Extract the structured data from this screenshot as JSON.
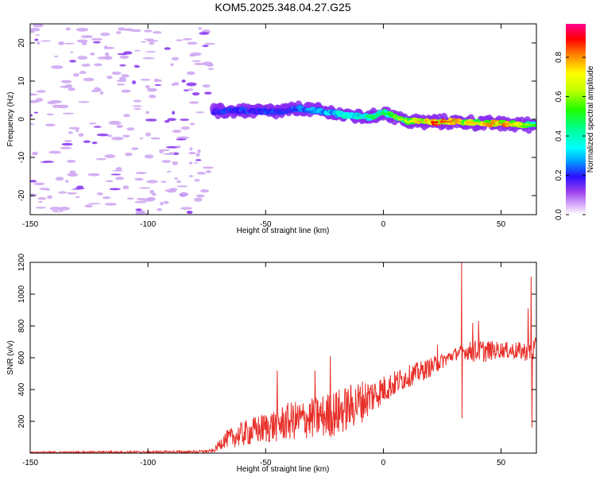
{
  "title": "KOM5.2025.348.04.27.G25",
  "colors": {
    "snr_line": "#e8302a",
    "blob_light": "#cfa8f2",
    "blob_mid": "#8d3cf0",
    "axis": "#000000"
  },
  "chart_data": [
    {
      "type": "heatmap",
      "name": "spectrogram",
      "xlabel": "Height of straight line (km)",
      "ylabel": "Frequency (Hz)",
      "xlim": [
        -150,
        65
      ],
      "ylim": [
        -25,
        25
      ],
      "xticks": [
        -150,
        -100,
        -50,
        0,
        50
      ],
      "yticks": [
        -20,
        -10,
        0,
        10,
        20
      ],
      "noise_region_x": [
        -150,
        -73
      ],
      "signal_path": [
        {
          "x": -72,
          "f": 2.0,
          "amp": 0.2
        },
        {
          "x": -60,
          "f": 2.3,
          "amp": 0.22
        },
        {
          "x": -45,
          "f": 2.0,
          "amp": 0.22
        },
        {
          "x": -35,
          "f": 2.8,
          "amp": 0.25
        },
        {
          "x": -25,
          "f": 2.0,
          "amp": 0.3
        },
        {
          "x": -15,
          "f": 1.0,
          "amp": 0.4
        },
        {
          "x": -5,
          "f": 0.5,
          "amp": 0.45
        },
        {
          "x": 0,
          "f": 1.8,
          "amp": 0.45
        },
        {
          "x": 10,
          "f": -0.5,
          "amp": 0.6
        },
        {
          "x": 20,
          "f": -0.8,
          "amp": 0.85
        },
        {
          "x": 30,
          "f": -0.6,
          "amp": 0.75
        },
        {
          "x": 40,
          "f": -1.0,
          "amp": 0.7
        },
        {
          "x": 50,
          "f": -1.2,
          "amp": 0.8
        },
        {
          "x": 60,
          "f": -1.4,
          "amp": 0.6
        },
        {
          "x": 65,
          "f": -1.5,
          "amp": 0.5
        }
      ],
      "colorbar": {
        "label": "Normalized spectral amplitude",
        "range": [
          0,
          0.97
        ],
        "ticks": [
          0.0,
          0.2,
          0.4,
          0.6,
          0.8
        ]
      }
    },
    {
      "type": "line",
      "name": "snr",
      "xlabel": "Height of straight line (km)",
      "ylabel": "SNR (v/v)",
      "xlim": [
        -150,
        65
      ],
      "ylim": [
        0,
        1200
      ],
      "xticks": [
        -150,
        -100,
        -50,
        0,
        50
      ],
      "yticks": [
        200,
        400,
        600,
        800,
        1000,
        1200
      ],
      "envelope": [
        {
          "x": -150,
          "base": 5,
          "amp": 5
        },
        {
          "x": -80,
          "base": 8,
          "amp": 8
        },
        {
          "x": -72,
          "base": 15,
          "amp": 10
        },
        {
          "x": -68,
          "base": 80,
          "amp": 50
        },
        {
          "x": -60,
          "base": 120,
          "amp": 80
        },
        {
          "x": -50,
          "base": 160,
          "amp": 100
        },
        {
          "x": -40,
          "base": 200,
          "amp": 120
        },
        {
          "x": -30,
          "base": 220,
          "amp": 130
        },
        {
          "x": -20,
          "base": 250,
          "amp": 150
        },
        {
          "x": -10,
          "base": 320,
          "amp": 140
        },
        {
          "x": 0,
          "base": 400,
          "amp": 90
        },
        {
          "x": 10,
          "base": 480,
          "amp": 70
        },
        {
          "x": 20,
          "base": 540,
          "amp": 60
        },
        {
          "x": 30,
          "base": 620,
          "amp": 40
        },
        {
          "x": 33,
          "base": 640,
          "amp": 40
        },
        {
          "x": 40,
          "base": 640,
          "amp": 80
        },
        {
          "x": 50,
          "base": 650,
          "amp": 50
        },
        {
          "x": 60,
          "base": 640,
          "amp": 60
        },
        {
          "x": 65,
          "base": 650,
          "amp": 80
        }
      ],
      "spikes": [
        {
          "x": -22.5,
          "y": 610
        },
        {
          "x": -29,
          "y": 520
        },
        {
          "x": -45,
          "y": 520
        },
        {
          "x": 23,
          "y": 680
        },
        {
          "x": 33.2,
          "y": 1200
        },
        {
          "x": 33.5,
          "y": 220
        },
        {
          "x": 38,
          "y": 820
        },
        {
          "x": 40.5,
          "y": 830
        },
        {
          "x": 61.5,
          "y": 910
        },
        {
          "x": 62.8,
          "y": 1110
        },
        {
          "x": 63.2,
          "y": 160
        }
      ]
    }
  ]
}
